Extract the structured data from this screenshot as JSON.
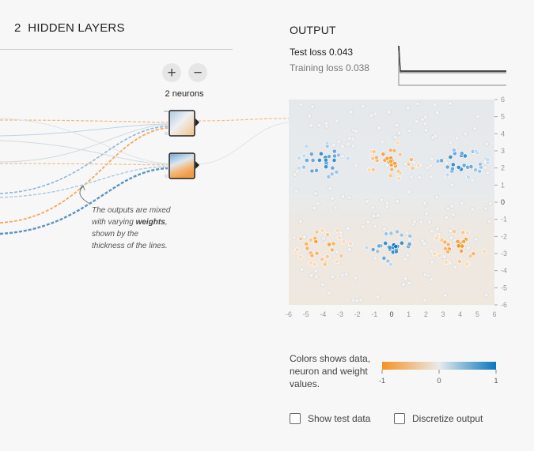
{
  "hidden_layers": {
    "count": "2",
    "title": "HIDDEN LAYERS",
    "add_label": "+",
    "remove_label": "−",
    "neuron_count": "2 neurons"
  },
  "annotation": {
    "pre": "The outputs are mixed with varying ",
    "bold": "weights",
    "post": ", shown by the thickness of the lines."
  },
  "output": {
    "title": "OUTPUT",
    "test_loss_label": "Test loss",
    "test_loss_value": "0.043",
    "training_loss_label": "Training loss",
    "training_loss_value": "0.038"
  },
  "heatmap": {
    "x_ticks": [
      "-6",
      "-5",
      "-4",
      "-3",
      "-2",
      "-1",
      "0",
      "1",
      "2",
      "3",
      "4",
      "5",
      "6"
    ],
    "y_ticks": [
      "6",
      "5",
      "4",
      "3",
      "2",
      "1",
      "0",
      "-1",
      "-2",
      "-3",
      "-4",
      "-5",
      "-6"
    ],
    "range": [
      -6,
      6
    ]
  },
  "legend": {
    "text": "Colors shows data, neuron and weight values.",
    "ticks": [
      "-1",
      "0",
      "1"
    ],
    "colors": {
      "negative": "#f59322",
      "neutral": "#e8eaeb",
      "positive": "#0877bd"
    }
  },
  "checkboxes": {
    "show_test": "Show test data",
    "discretize": "Discretize output"
  }
}
